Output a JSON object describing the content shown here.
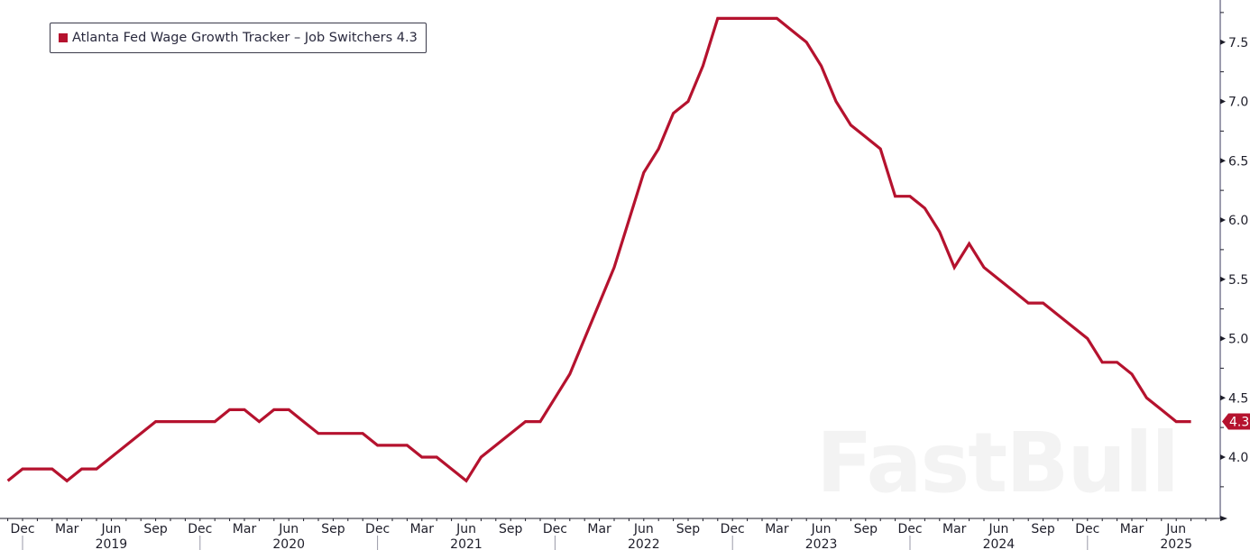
{
  "legend": {
    "label": "Atlanta Fed Wage Growth Tracker – Job Switchers 4.3",
    "swatch_color": "#b5122e"
  },
  "watermark": "FastBull",
  "last_value_tag": "4.3",
  "colors": {
    "line": "#b5122e",
    "axis": "#5a5a78",
    "text": "#1e1e2a"
  },
  "chart_data": {
    "type": "line",
    "title": "",
    "xlabel": "",
    "ylabel": "",
    "ylim": [
      3.6,
      7.8
    ],
    "y_ticks": [
      4.0,
      4.5,
      5.0,
      5.5,
      6.0,
      6.5,
      7.0,
      7.5
    ],
    "y_axis_position": "right",
    "grid": false,
    "legend_position": "top-left",
    "x_month_labels": [
      "Dec",
      "Mar",
      "Jun",
      "Sep",
      "Dec",
      "Mar",
      "Jun",
      "Sep",
      "Dec",
      "Mar",
      "Jun",
      "Sep",
      "Dec",
      "Mar",
      "Jun",
      "Sep",
      "Dec",
      "Mar",
      "Jun",
      "Sep",
      "Dec",
      "Mar",
      "Jun",
      "Sep",
      "Dec",
      "Mar",
      "Jun"
    ],
    "x_year_labels": [
      "2019",
      "2020",
      "2021",
      "2022",
      "2023",
      "2024",
      "2025"
    ],
    "series": [
      {
        "name": "Atlanta Fed Wage Growth Tracker – Job Switchers",
        "last_value": 4.3,
        "x": [
          "2018-11",
          "2018-12",
          "2019-01",
          "2019-02",
          "2019-03",
          "2019-04",
          "2019-05",
          "2019-06",
          "2019-07",
          "2019-08",
          "2019-09",
          "2019-10",
          "2019-11",
          "2019-12",
          "2020-01",
          "2020-02",
          "2020-03",
          "2020-04",
          "2020-05",
          "2020-06",
          "2020-07",
          "2020-08",
          "2020-09",
          "2020-10",
          "2020-11",
          "2020-12",
          "2021-01",
          "2021-02",
          "2021-03",
          "2021-04",
          "2021-05",
          "2021-06",
          "2021-07",
          "2021-08",
          "2021-09",
          "2021-10",
          "2021-11",
          "2021-12",
          "2022-01",
          "2022-02",
          "2022-03",
          "2022-04",
          "2022-05",
          "2022-06",
          "2022-07",
          "2022-08",
          "2022-09",
          "2022-10",
          "2022-11",
          "2022-12",
          "2023-01",
          "2023-02",
          "2023-03",
          "2023-04",
          "2023-05",
          "2023-06",
          "2023-07",
          "2023-08",
          "2023-09",
          "2023-10",
          "2023-11",
          "2023-12",
          "2024-01",
          "2024-02",
          "2024-03",
          "2024-04",
          "2024-05",
          "2024-06",
          "2024-07",
          "2024-08",
          "2024-09",
          "2024-10",
          "2024-11",
          "2024-12",
          "2025-01",
          "2025-02",
          "2025-03",
          "2025-04",
          "2025-05",
          "2025-06",
          "2025-07"
        ],
        "values": [
          3.8,
          3.9,
          3.9,
          3.9,
          3.8,
          3.9,
          3.9,
          4.0,
          4.1,
          4.2,
          4.3,
          4.3,
          4.3,
          4.3,
          4.3,
          4.4,
          4.4,
          4.3,
          4.4,
          4.4,
          4.3,
          4.2,
          4.2,
          4.2,
          4.2,
          4.1,
          4.1,
          4.1,
          4.0,
          4.0,
          3.9,
          3.8,
          4.0,
          4.1,
          4.2,
          4.3,
          4.3,
          4.5,
          4.7,
          5.0,
          5.3,
          5.6,
          6.0,
          6.4,
          6.6,
          6.9,
          7.0,
          7.3,
          7.7,
          7.7,
          7.7,
          7.7,
          7.7,
          7.6,
          7.5,
          7.3,
          7.0,
          6.8,
          6.7,
          6.6,
          6.2,
          6.2,
          6.1,
          5.9,
          5.6,
          5.8,
          5.6,
          5.5,
          5.4,
          5.3,
          5.3,
          5.2,
          5.1,
          5.0,
          4.8,
          4.8,
          4.7,
          4.5,
          4.4,
          4.3,
          4.3
        ]
      }
    ]
  }
}
